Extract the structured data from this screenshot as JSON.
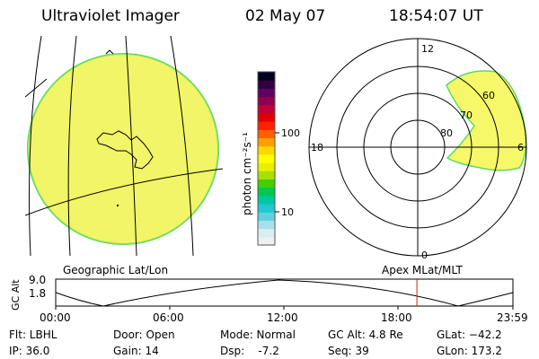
{
  "header": {
    "instrument": "Ultraviolet Imager",
    "date": "02 May 07",
    "time": "18:54:07 UT"
  },
  "colorbar": {
    "unit_label": "photon cm⁻²s⁻¹",
    "ticks": [
      "100",
      "10"
    ],
    "colors": [
      "#f0f0f0",
      "#d8eef0",
      "#a8e0e8",
      "#60d0e0",
      "#20c8d0",
      "#00c8a0",
      "#00c850",
      "#40d000",
      "#a8e000",
      "#e8f000",
      "#ffff00",
      "#ffd800",
      "#ffa000",
      "#ff6000",
      "#ff2000",
      "#e00000",
      "#c0003a",
      "#900050",
      "#600060",
      "#300040",
      "#000020"
    ]
  },
  "left_panel": {
    "label": "Geographic Lat/Lon",
    "disk_fill": "#f6f86a",
    "disk_edge": "#60d860"
  },
  "right_panel": {
    "label": "Apex MLat/MLT",
    "mlt_labels": {
      "top": "12",
      "left": "18",
      "right": "6",
      "bottom": "0"
    },
    "lat_labels": [
      "60",
      "70",
      "80"
    ]
  },
  "timeline": {
    "axis_label": "GC Alt",
    "y_ticks": [
      "9.0",
      "1.8"
    ],
    "x_ticks": [
      "00:00",
      "06:00",
      "12:00",
      "18:00",
      "23:59"
    ],
    "current_time_fraction": 0.79,
    "marker_color": "#cc2200"
  },
  "info": {
    "flt": "Flt: LBHL",
    "ip": "IP: 36.0",
    "door": "Door: Open",
    "gain": "Gain: 14",
    "mode": "Mode: Normal",
    "dsp": "Dsp:    -7.2",
    "gc_alt": "GC Alt: 4.8 Re",
    "seq": "Seq: 39",
    "glat": "GLat: −42.2",
    "glon": "GLon: 173.2"
  }
}
